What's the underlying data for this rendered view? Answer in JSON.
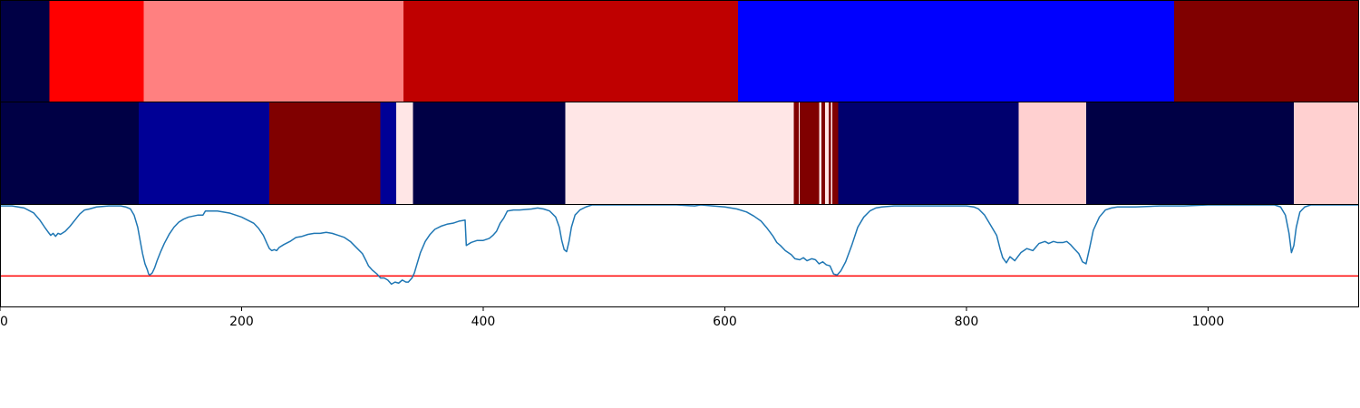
{
  "chart_data": {
    "type": "heatmap",
    "title": "",
    "xlabel": "",
    "ylabel": "",
    "xlim": [
      0,
      1125
    ],
    "colormap": "seismic",
    "tracks": [
      {
        "name": "",
        "segments": [
          {
            "start": 0,
            "end": 41,
            "color": "#000045"
          },
          {
            "start": 41,
            "end": 119,
            "color": "#ff0000"
          },
          {
            "start": 119,
            "end": 334,
            "color": "#ff8080"
          },
          {
            "start": 334,
            "end": 611,
            "color": "#bf0000"
          },
          {
            "start": 611,
            "end": 972,
            "color": "#0000ff"
          },
          {
            "start": 972,
            "end": 1125,
            "color": "#800000"
          }
        ]
      },
      {
        "name": "",
        "segments": [
          {
            "start": 0,
            "end": 115,
            "color": "#000045"
          },
          {
            "start": 115,
            "end": 223,
            "color": "#000096"
          },
          {
            "start": 223,
            "end": 315,
            "color": "#800000"
          },
          {
            "start": 315,
            "end": 328,
            "color": "#000096"
          },
          {
            "start": 328,
            "end": 342,
            "color": "#ffe6e6"
          },
          {
            "start": 342,
            "end": 468,
            "color": "#000045"
          },
          {
            "start": 468,
            "end": 657,
            "color": "#ffe6e6"
          },
          {
            "start": 657,
            "end": 661,
            "color": "#800000"
          },
          {
            "start": 661,
            "end": 662,
            "color": "#ffe6e6"
          },
          {
            "start": 662,
            "end": 678,
            "color": "#800000"
          },
          {
            "start": 678,
            "end": 680,
            "color": "#ffe6e6"
          },
          {
            "start": 680,
            "end": 683,
            "color": "#800000"
          },
          {
            "start": 683,
            "end": 686,
            "color": "#ffe6e6"
          },
          {
            "start": 686,
            "end": 688,
            "color": "#800000"
          },
          {
            "start": 688,
            "end": 689,
            "color": "#ffe6e6"
          },
          {
            "start": 689,
            "end": 694,
            "color": "#800000"
          },
          {
            "start": 694,
            "end": 843,
            "color": "#00006e"
          },
          {
            "start": 843,
            "end": 899,
            "color": "#ffd0d0"
          },
          {
            "start": 899,
            "end": 1071,
            "color": "#000045"
          },
          {
            "start": 1071,
            "end": 1125,
            "color": "#ffd0d0"
          }
        ]
      }
    ],
    "line": {
      "name": "",
      "color": "#1f77b4",
      "ylim": [
        0,
        1.0
      ],
      "threshold": 0.3,
      "threshold_color": "#ff0000",
      "points": [
        [
          0,
          0.99
        ],
        [
          10,
          0.99
        ],
        [
          20,
          0.97
        ],
        [
          28,
          0.92
        ],
        [
          33,
          0.85
        ],
        [
          37,
          0.78
        ],
        [
          40,
          0.73
        ],
        [
          42,
          0.7
        ],
        [
          44,
          0.72
        ],
        [
          46,
          0.69
        ],
        [
          48,
          0.72
        ],
        [
          50,
          0.71
        ],
        [
          54,
          0.74
        ],
        [
          58,
          0.79
        ],
        [
          62,
          0.85
        ],
        [
          66,
          0.91
        ],
        [
          70,
          0.95
        ],
        [
          74,
          0.96
        ],
        [
          80,
          0.98
        ],
        [
          90,
          0.99
        ],
        [
          100,
          0.99
        ],
        [
          104,
          0.98
        ],
        [
          108,
          0.96
        ],
        [
          111,
          0.9
        ],
        [
          114,
          0.78
        ],
        [
          116,
          0.65
        ],
        [
          118,
          0.52
        ],
        [
          120,
          0.42
        ],
        [
          122,
          0.36
        ],
        [
          123,
          0.32
        ],
        [
          124,
          0.31
        ],
        [
          126,
          0.33
        ],
        [
          128,
          0.38
        ],
        [
          130,
          0.45
        ],
        [
          133,
          0.54
        ],
        [
          136,
          0.62
        ],
        [
          140,
          0.71
        ],
        [
          144,
          0.78
        ],
        [
          148,
          0.83
        ],
        [
          152,
          0.86
        ],
        [
          156,
          0.88
        ],
        [
          160,
          0.89
        ],
        [
          164,
          0.9
        ],
        [
          168,
          0.9
        ],
        [
          170,
          0.94
        ],
        [
          175,
          0.94
        ],
        [
          180,
          0.94
        ],
        [
          185,
          0.93
        ],
        [
          190,
          0.92
        ],
        [
          195,
          0.9
        ],
        [
          200,
          0.88
        ],
        [
          205,
          0.85
        ],
        [
          210,
          0.82
        ],
        [
          214,
          0.77
        ],
        [
          218,
          0.7
        ],
        [
          221,
          0.62
        ],
        [
          223,
          0.57
        ],
        [
          225,
          0.55
        ],
        [
          227,
          0.56
        ],
        [
          229,
          0.55
        ],
        [
          231,
          0.58
        ],
        [
          235,
          0.61
        ],
        [
          240,
          0.64
        ],
        [
          245,
          0.68
        ],
        [
          250,
          0.69
        ],
        [
          255,
          0.71
        ],
        [
          260,
          0.72
        ],
        [
          265,
          0.72
        ],
        [
          270,
          0.73
        ],
        [
          275,
          0.72
        ],
        [
          280,
          0.7
        ],
        [
          285,
          0.68
        ],
        [
          290,
          0.64
        ],
        [
          295,
          0.58
        ],
        [
          300,
          0.52
        ],
        [
          303,
          0.45
        ],
        [
          305,
          0.4
        ],
        [
          308,
          0.36
        ],
        [
          312,
          0.32
        ],
        [
          315,
          0.28
        ],
        [
          318,
          0.28
        ],
        [
          321,
          0.26
        ],
        [
          324,
          0.22
        ],
        [
          327,
          0.24
        ],
        [
          330,
          0.23
        ],
        [
          333,
          0.26
        ],
        [
          336,
          0.24
        ],
        [
          338,
          0.24
        ],
        [
          341,
          0.28
        ],
        [
          343,
          0.33
        ],
        [
          345,
          0.41
        ],
        [
          348,
          0.53
        ],
        [
          352,
          0.64
        ],
        [
          356,
          0.71
        ],
        [
          360,
          0.76
        ],
        [
          365,
          0.79
        ],
        [
          370,
          0.81
        ],
        [
          375,
          0.82
        ],
        [
          380,
          0.84
        ],
        [
          385,
          0.85
        ],
        [
          386,
          0.6
        ],
        [
          390,
          0.63
        ],
        [
          395,
          0.65
        ],
        [
          400,
          0.65
        ],
        [
          405,
          0.67
        ],
        [
          408,
          0.7
        ],
        [
          411,
          0.74
        ],
        [
          414,
          0.82
        ],
        [
          417,
          0.87
        ],
        [
          420,
          0.94
        ],
        [
          425,
          0.95
        ],
        [
          430,
          0.95
        ],
        [
          440,
          0.96
        ],
        [
          445,
          0.97
        ],
        [
          450,
          0.96
        ],
        [
          455,
          0.94
        ],
        [
          460,
          0.88
        ],
        [
          463,
          0.78
        ],
        [
          465,
          0.65
        ],
        [
          467,
          0.56
        ],
        [
          469,
          0.54
        ],
        [
          471,
          0.64
        ],
        [
          473,
          0.78
        ],
        [
          476,
          0.9
        ],
        [
          480,
          0.95
        ],
        [
          485,
          0.98
        ],
        [
          490,
          1.0
        ],
        [
          500,
          1.0
        ],
        [
          520,
          1.0
        ],
        [
          540,
          1.0
        ],
        [
          560,
          1.0
        ],
        [
          575,
          0.99
        ],
        [
          580,
          1.0
        ],
        [
          590,
          0.99
        ],
        [
          600,
          0.98
        ],
        [
          610,
          0.96
        ],
        [
          618,
          0.93
        ],
        [
          624,
          0.89
        ],
        [
          630,
          0.84
        ],
        [
          635,
          0.77
        ],
        [
          640,
          0.69
        ],
        [
          643,
          0.63
        ],
        [
          646,
          0.6
        ],
        [
          650,
          0.55
        ],
        [
          655,
          0.51
        ],
        [
          658,
          0.47
        ],
        [
          662,
          0.46
        ],
        [
          665,
          0.48
        ],
        [
          668,
          0.45
        ],
        [
          672,
          0.47
        ],
        [
          675,
          0.46
        ],
        [
          678,
          0.42
        ],
        [
          681,
          0.44
        ],
        [
          684,
          0.41
        ],
        [
          687,
          0.4
        ],
        [
          690,
          0.32
        ],
        [
          693,
          0.31
        ],
        [
          696,
          0.35
        ],
        [
          700,
          0.44
        ],
        [
          705,
          0.6
        ],
        [
          710,
          0.78
        ],
        [
          715,
          0.88
        ],
        [
          720,
          0.94
        ],
        [
          725,
          0.97
        ],
        [
          730,
          0.98
        ],
        [
          740,
          0.99
        ],
        [
          760,
          0.99
        ],
        [
          780,
          0.99
        ],
        [
          800,
          0.99
        ],
        [
          806,
          0.98
        ],
        [
          810,
          0.96
        ],
        [
          815,
          0.9
        ],
        [
          820,
          0.8
        ],
        [
          825,
          0.7
        ],
        [
          828,
          0.56
        ],
        [
          830,
          0.48
        ],
        [
          833,
          0.43
        ],
        [
          836,
          0.49
        ],
        [
          840,
          0.45
        ],
        [
          845,
          0.53
        ],
        [
          850,
          0.57
        ],
        [
          855,
          0.55
        ],
        [
          860,
          0.62
        ],
        [
          865,
          0.64
        ],
        [
          868,
          0.62
        ],
        [
          872,
          0.64
        ],
        [
          875,
          0.63
        ],
        [
          880,
          0.63
        ],
        [
          883,
          0.64
        ],
        [
          886,
          0.61
        ],
        [
          889,
          0.57
        ],
        [
          893,
          0.52
        ],
        [
          896,
          0.44
        ],
        [
          899,
          0.42
        ],
        [
          902,
          0.58
        ],
        [
          905,
          0.75
        ],
        [
          910,
          0.88
        ],
        [
          915,
          0.95
        ],
        [
          920,
          0.97
        ],
        [
          925,
          0.98
        ],
        [
          940,
          0.98
        ],
        [
          960,
          0.99
        ],
        [
          980,
          0.99
        ],
        [
          1000,
          1.0
        ],
        [
          1020,
          1.0
        ],
        [
          1040,
          1.0
        ],
        [
          1055,
          1.0
        ],
        [
          1060,
          0.98
        ],
        [
          1064,
          0.9
        ],
        [
          1067,
          0.72
        ],
        [
          1069,
          0.53
        ],
        [
          1071,
          0.6
        ],
        [
          1073,
          0.78
        ],
        [
          1076,
          0.93
        ],
        [
          1080,
          0.98
        ],
        [
          1085,
          1.0
        ],
        [
          1100,
          1.0
        ],
        [
          1125,
          1.0
        ]
      ]
    },
    "x_ticks": [
      {
        "value": 0,
        "label": "0"
      },
      {
        "value": 200,
        "label": "200"
      },
      {
        "value": 400,
        "label": "400"
      },
      {
        "value": 600,
        "label": "600"
      },
      {
        "value": 800,
        "label": "800"
      },
      {
        "value": 1000,
        "label": "1000"
      }
    ]
  }
}
